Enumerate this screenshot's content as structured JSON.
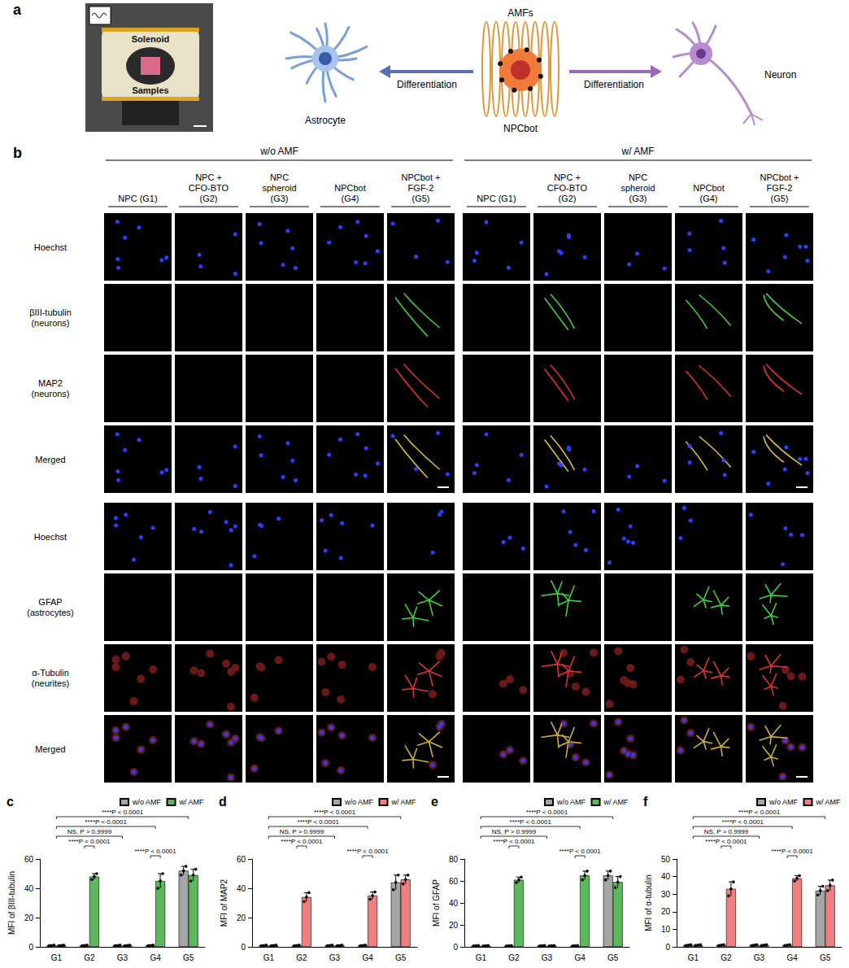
{
  "panel_a": {
    "label": "a",
    "photo_labels": [
      "Solenoid",
      "Samples"
    ],
    "left_cell": "Astrocyte",
    "center_top": "AMFs",
    "center_cell": "NPCbot",
    "right_cell": "Neuron",
    "arrow_labels": [
      "Differentiation",
      "Differentiation"
    ]
  },
  "panel_b": {
    "label": "b",
    "conditions": [
      "w/o AMF",
      "w/ AMF"
    ],
    "groups": [
      "NPC (G1)",
      "NPC + CFO-BTO (G2)",
      "NPC spheroid (G3)",
      "NPCbot (G4)",
      "NPCbot + FGF-2 (G5)"
    ],
    "rows": [
      "Hoechst",
      "βIII-tubulin (neurons)",
      "MAP2 (neurons)",
      "Merged",
      "Hoechst",
      "GFAP (astrocytes)",
      "α-Tubulin (neurites)",
      "Merged"
    ]
  },
  "chart_data": [
    {
      "label": "c",
      "type": "bar",
      "y_label": "MFI of βIII-tubulin",
      "categories": [
        "G1",
        "G2",
        "G3",
        "G4",
        "G5"
      ],
      "ylim": [
        0,
        60
      ],
      "yticks": [
        0,
        20,
        40,
        60
      ],
      "legend": "top-right",
      "series": [
        {
          "name": "w/o AMF",
          "color": "#a6a6a6",
          "values": [
            1,
            1,
            1,
            1,
            52
          ],
          "errors": [
            0.2,
            0.2,
            0.2,
            0.2,
            3
          ],
          "points": [
            [
              0.8,
              1,
              1.2
            ],
            [
              0.8,
              1,
              1.2
            ],
            [
              0.8,
              1,
              1.2
            ],
            [
              0.8,
              1,
              1.2
            ],
            [
              49,
              52,
              55
            ]
          ]
        },
        {
          "name": "w/ AMF",
          "color": "#5cb85c",
          "values": [
            1,
            48,
            1,
            45,
            49
          ],
          "errors": [
            0.2,
            2,
            0.2,
            5,
            4
          ],
          "points": [
            [
              0.8,
              1,
              1.2
            ],
            [
              46,
              48,
              50
            ],
            [
              0.8,
              1,
              1.2
            ],
            [
              40,
              45,
              50
            ],
            [
              45,
              49,
              53
            ]
          ]
        }
      ],
      "annotations": [
        {
          "text": "****P < 0.0001",
          "from": "G1",
          "to": "G5"
        },
        {
          "text": "****P < 0.0001",
          "from": "G1",
          "to": "G4"
        },
        {
          "text": "NS, P > 0.9999",
          "from": "G1",
          "to": "G3"
        },
        {
          "text": "****P < 0.0001",
          "from": "G2",
          "to": "G2"
        },
        {
          "text": "****P < 0.0001",
          "from": "G4",
          "to": "G4"
        }
      ]
    },
    {
      "label": "d",
      "type": "bar",
      "y_label": "MFI of MAP2",
      "categories": [
        "G1",
        "G2",
        "G3",
        "G4",
        "G5"
      ],
      "ylim": [
        0,
        60
      ],
      "yticks": [
        0,
        20,
        40,
        60
      ],
      "legend": "top-right",
      "series": [
        {
          "name": "w/o AMF",
          "color": "#a6a6a6",
          "values": [
            1,
            1,
            1,
            1,
            44
          ],
          "errors": [
            0.2,
            0.2,
            0.2,
            0.2,
            5
          ],
          "points": [
            [
              0.8,
              1,
              1.2
            ],
            [
              0.8,
              1,
              1.2
            ],
            [
              0.8,
              1,
              1.2
            ],
            [
              0.8,
              1,
              1.2
            ],
            [
              39,
              44,
              49
            ]
          ]
        },
        {
          "name": "w/ AMF",
          "color": "#f08080",
          "values": [
            1,
            34,
            1,
            35,
            46
          ],
          "errors": [
            0.2,
            3,
            0.2,
            2.5,
            3
          ],
          "points": [
            [
              0.8,
              1,
              1.2
            ],
            [
              31,
              34,
              37
            ],
            [
              0.8,
              1,
              1.2
            ],
            [
              32.5,
              35,
              37.5
            ],
            [
              43,
              46,
              49
            ]
          ]
        }
      ],
      "annotations": [
        {
          "text": "****P < 0.0001",
          "from": "G1",
          "to": "G5"
        },
        {
          "text": "****P < 0.0001",
          "from": "G1",
          "to": "G4"
        },
        {
          "text": "NS, P > 0.9999",
          "from": "G1",
          "to": "G3"
        },
        {
          "text": "****P < 0.0001",
          "from": "G2",
          "to": "G2"
        },
        {
          "text": "****P < 0.0001",
          "from": "G4",
          "to": "G4"
        }
      ]
    },
    {
      "label": "e",
      "type": "bar",
      "y_label": "MFI of GFAP",
      "categories": [
        "G1",
        "G2",
        "G3",
        "G4",
        "G5"
      ],
      "ylim": [
        0,
        80
      ],
      "yticks": [
        0,
        20,
        40,
        60,
        80
      ],
      "legend": "top-right",
      "series": [
        {
          "name": "w/o AMF",
          "color": "#a6a6a6",
          "values": [
            1,
            1,
            1,
            1,
            65
          ],
          "errors": [
            0.2,
            0.2,
            0.2,
            0.2,
            4
          ],
          "points": [
            [
              0.8,
              1,
              1.2
            ],
            [
              0.8,
              1,
              1.2
            ],
            [
              0.8,
              1,
              1.2
            ],
            [
              0.8,
              1,
              1.2
            ],
            [
              61,
              65,
              69
            ]
          ]
        },
        {
          "name": "w/ AMF",
          "color": "#5cb85c",
          "values": [
            1,
            61,
            1,
            65,
            59
          ],
          "errors": [
            0.2,
            2.5,
            0.2,
            4,
            5
          ],
          "points": [
            [
              0.8,
              1,
              1.2
            ],
            [
              58.5,
              61,
              63.5
            ],
            [
              0.8,
              1,
              1.2
            ],
            [
              61,
              65,
              69
            ],
            [
              54,
              59,
              64
            ]
          ]
        }
      ],
      "annotations": [
        {
          "text": "****P < 0.0001",
          "from": "G1",
          "to": "G5"
        },
        {
          "text": "****P < 0.0001",
          "from": "G1",
          "to": "G4"
        },
        {
          "text": "NS, P > 0.9999",
          "from": "G1",
          "to": "G3"
        },
        {
          "text": "****P < 0.0001",
          "from": "G2",
          "to": "G2"
        },
        {
          "text": "****P < 0.0001",
          "from": "G4",
          "to": "G4"
        }
      ]
    },
    {
      "label": "f",
      "type": "bar",
      "y_label": "MFI of α-tubulin",
      "categories": [
        "G1",
        "G2",
        "G3",
        "G4",
        "G5"
      ],
      "ylim": [
        0,
        50
      ],
      "yticks": [
        0,
        10,
        20,
        30,
        40,
        50
      ],
      "legend": "top-right",
      "series": [
        {
          "name": "w/o AMF",
          "color": "#a6a6a6",
          "values": [
            1,
            1,
            1,
            1,
            32
          ],
          "errors": [
            0.2,
            0.2,
            0.2,
            0.2,
            2.5
          ],
          "points": [
            [
              0.8,
              1,
              1.2
            ],
            [
              0.8,
              1,
              1.2
            ],
            [
              0.8,
              1,
              1.2
            ],
            [
              0.8,
              1,
              1.2
            ],
            [
              29.5,
              32,
              34.5
            ]
          ]
        },
        {
          "name": "w/ AMF",
          "color": "#f08080",
          "values": [
            1,
            33,
            1,
            39,
            35
          ],
          "errors": [
            0.2,
            4,
            0.2,
            1.5,
            3
          ],
          "points": [
            [
              0.8,
              1,
              1.2
            ],
            [
              29,
              33,
              37
            ],
            [
              0.8,
              1,
              1.2
            ],
            [
              37.5,
              39,
              40.5
            ],
            [
              32,
              35,
              38
            ]
          ]
        }
      ],
      "annotations": [
        {
          "text": "****P < 0.0001",
          "from": "G1",
          "to": "G5"
        },
        {
          "text": "****P < 0.0001",
          "from": "G1",
          "to": "G4"
        },
        {
          "text": "NS, P > 0.9999",
          "from": "G1",
          "to": "G3"
        },
        {
          "text": "****P < 0.0001",
          "from": "G2",
          "to": "G2"
        },
        {
          "text": "****P < 0.0001",
          "from": "G4",
          "to": "G4"
        }
      ]
    }
  ]
}
